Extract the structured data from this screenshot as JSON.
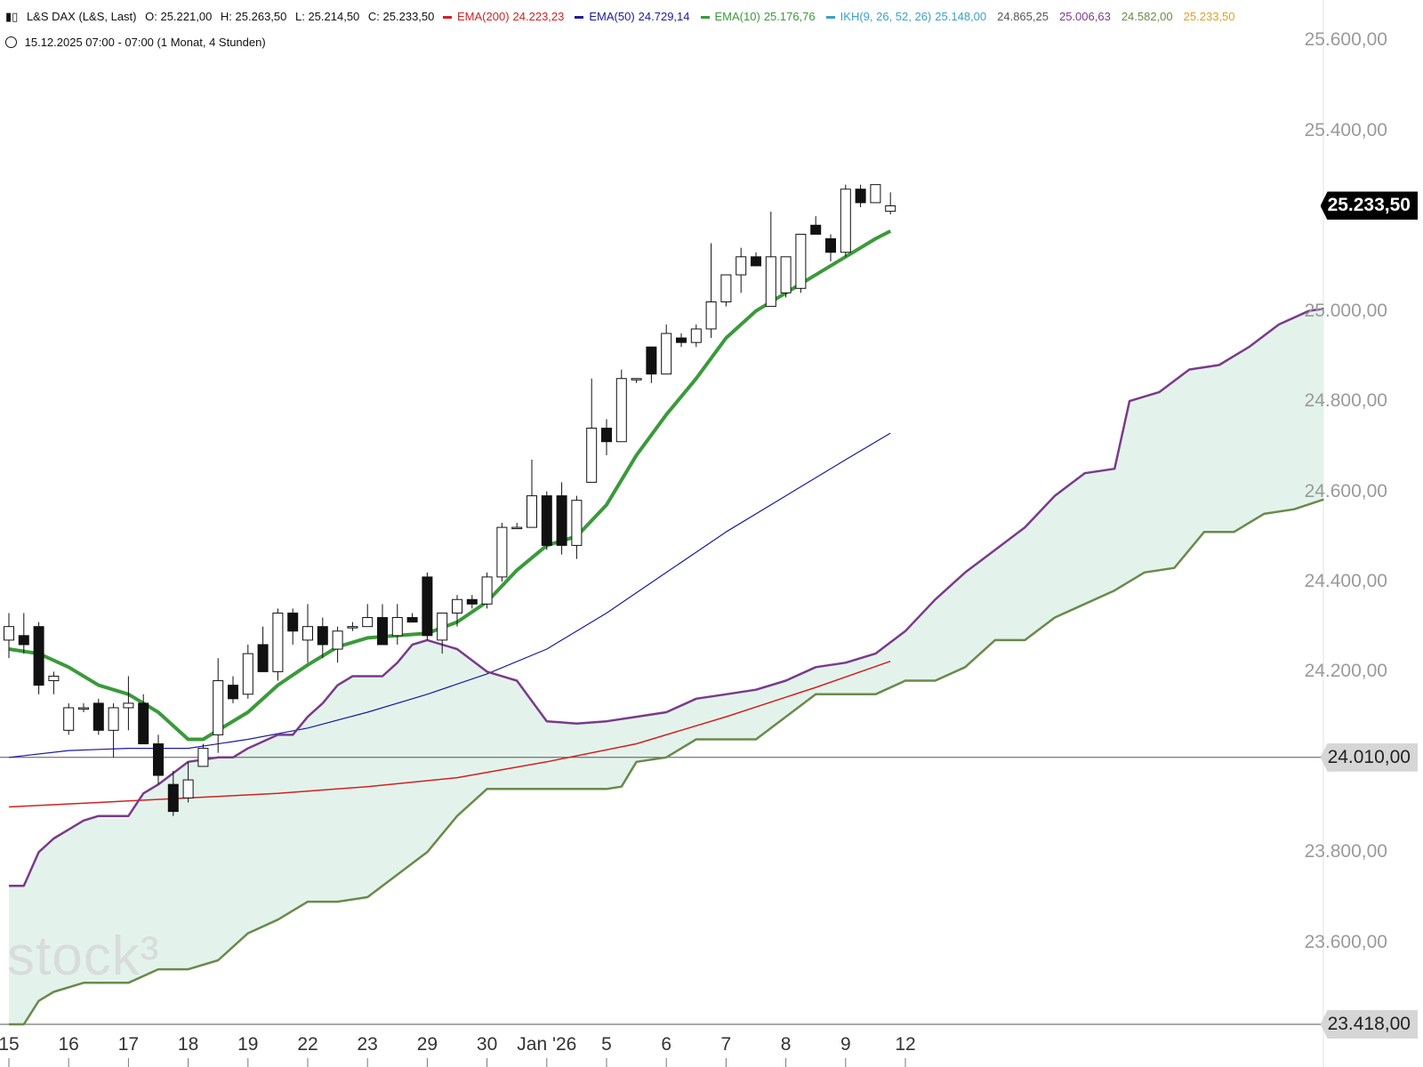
{
  "header": {
    "symbol_icon": "candlestick-icon",
    "symbol": "L&S DAX (L&S, Last)",
    "ohlc": {
      "o": "O: 25.221,00",
      "h": "H: 25.263,50",
      "l": "L: 25.214,50",
      "c": "C: 25.233,50"
    },
    "indicators": [
      {
        "label": "EMA(200)",
        "value": "24.223,23",
        "color": "#d42020"
      },
      {
        "label": "EMA(50)",
        "value": "24.729,14",
        "color": "#1a1aa0"
      },
      {
        "label": "EMA(10)",
        "value": "25.176,76",
        "color": "#3a9a3a"
      },
      {
        "label": "IKH(9, 26, 52, 26)",
        "value": "25.148,00",
        "color": "#3aa0c8",
        "extra": [
          {
            "value": "24.865,25",
            "color": "#555555"
          },
          {
            "value": "25.006,63",
            "color": "#7a3a8a"
          },
          {
            "value": "24.582,00",
            "color": "#6a8a4a"
          },
          {
            "value": "25.233,50",
            "color": "#e0a020"
          }
        ]
      }
    ],
    "time_icon": "clock-icon",
    "timestamp": "15.12.2025 07:00 - 07:00",
    "range": "(1 Monat, 4 Stunden)"
  },
  "watermark": "stock³",
  "price_label": "25.233,50",
  "hline_labels": [
    "24.010,00",
    "23.418,00"
  ],
  "chart_data": {
    "type": "candlestick",
    "y_axis": {
      "ticks": [
        "25.600,00",
        "25.400,00",
        "25.000,00",
        "24.800,00",
        "24.600,00",
        "24.400,00",
        "24.200,00",
        "23.800,00",
        "23.600,00"
      ],
      "ylim": [
        23418,
        25650
      ]
    },
    "x_axis": {
      "ticks": [
        "15",
        "16",
        "17",
        "18",
        "19",
        "22",
        "23",
        "29",
        "30",
        "Jan '26",
        "5",
        "6",
        "7",
        "8",
        "9",
        "12"
      ]
    },
    "horizontal_lines": [
      24010,
      23418
    ],
    "candles": [
      [
        24270,
        24330,
        24230,
        24300
      ],
      [
        24280,
        24330,
        24240,
        24260
      ],
      [
        24300,
        24310,
        24150,
        24170
      ],
      [
        24180,
        24200,
        24150,
        24190
      ],
      [
        24070,
        24130,
        24060,
        24120
      ],
      [
        24120,
        24130,
        24110,
        24120
      ],
      [
        24130,
        24140,
        24060,
        24070
      ],
      [
        24070,
        24130,
        24010,
        24120
      ],
      [
        24120,
        24190,
        24070,
        24130
      ],
      [
        24130,
        24150,
        24060,
        24040
      ],
      [
        24040,
        24060,
        23950,
        23970
      ],
      [
        23950,
        23980,
        23880,
        23890
      ],
      [
        23920,
        24000,
        23910,
        23960
      ],
      [
        23990,
        24040,
        23990,
        24030
      ],
      [
        24060,
        24230,
        24020,
        24180
      ],
      [
        24170,
        24190,
        24130,
        24140
      ],
      [
        24150,
        24260,
        24140,
        24240
      ],
      [
        24260,
        24300,
        24200,
        24200
      ],
      [
        24200,
        24340,
        24180,
        24330
      ],
      [
        24330,
        24340,
        24260,
        24290
      ],
      [
        24270,
        24350,
        24220,
        24300
      ],
      [
        24300,
        24320,
        24230,
        24260
      ],
      [
        24250,
        24300,
        24220,
        24290
      ],
      [
        24300,
        24310,
        24290,
        24300
      ],
      [
        24300,
        24350,
        24300,
        24320
      ],
      [
        24320,
        24350,
        24260,
        24260
      ],
      [
        24280,
        24350,
        24260,
        24320
      ],
      [
        24320,
        24330,
        24310,
        24310
      ],
      [
        24410,
        24420,
        24270,
        24280
      ],
      [
        24270,
        24330,
        24240,
        24330
      ],
      [
        24330,
        24370,
        24300,
        24360
      ],
      [
        24360,
        24370,
        24340,
        24350
      ],
      [
        24350,
        24420,
        24340,
        24410
      ],
      [
        24410,
        24530,
        24400,
        24520
      ],
      [
        24520,
        24530,
        24520,
        24520
      ],
      [
        24520,
        24670,
        24520,
        24590
      ],
      [
        24590,
        24600,
        24470,
        24480
      ],
      [
        24590,
        24620,
        24460,
        24480
      ],
      [
        24480,
        24590,
        24450,
        24580
      ],
      [
        24620,
        24850,
        24620,
        24740
      ],
      [
        24740,
        24760,
        24680,
        24710
      ],
      [
        24710,
        24870,
        24710,
        24850
      ],
      [
        24850,
        24850,
        24840,
        24850
      ],
      [
        24920,
        24920,
        24840,
        24860
      ],
      [
        24860,
        24970,
        24860,
        24950
      ],
      [
        24940,
        24950,
        24920,
        24930
      ],
      [
        24930,
        24970,
        24920,
        24960
      ],
      [
        24960,
        25150,
        24940,
        25020
      ],
      [
        25020,
        25080,
        25010,
        25080
      ],
      [
        25080,
        25140,
        25040,
        25120
      ],
      [
        25120,
        25130,
        25100,
        25100
      ],
      [
        25010,
        25220,
        25010,
        25120
      ],
      [
        25040,
        25120,
        25030,
        25120
      ],
      [
        25050,
        25170,
        25040,
        25170
      ],
      [
        25190,
        25210,
        25170,
        25170
      ],
      [
        25160,
        25170,
        25110,
        25130
      ],
      [
        25130,
        25280,
        25120,
        25270
      ],
      [
        25270,
        25280,
        25230,
        25240
      ],
      [
        25240,
        25280,
        25240,
        25280
      ],
      [
        25221,
        25263,
        25214,
        25233
      ]
    ],
    "series": [
      {
        "name": "EMA(200)",
        "color": "#d42020",
        "points": [
          [
            0,
            23900
          ],
          [
            6,
            23910
          ],
          [
            12,
            23920
          ],
          [
            18,
            23930
          ],
          [
            24,
            23945
          ],
          [
            30,
            23965
          ],
          [
            36,
            24000
          ],
          [
            42,
            24040
          ],
          [
            48,
            24100
          ],
          [
            54,
            24165
          ],
          [
            59,
            24223
          ]
        ]
      },
      {
        "name": "EMA(50)",
        "color": "#1a1aa0",
        "points": [
          [
            0,
            24010
          ],
          [
            4,
            24025
          ],
          [
            8,
            24030
          ],
          [
            12,
            24030
          ],
          [
            16,
            24050
          ],
          [
            20,
            24075
          ],
          [
            24,
            24110
          ],
          [
            28,
            24150
          ],
          [
            32,
            24195
          ],
          [
            36,
            24250
          ],
          [
            40,
            24330
          ],
          [
            44,
            24420
          ],
          [
            48,
            24510
          ],
          [
            52,
            24590
          ],
          [
            56,
            24670
          ],
          [
            59,
            24729
          ]
        ]
      },
      {
        "name": "EMA(10)",
        "color": "#3a9a3a",
        "points": [
          [
            0,
            24250
          ],
          [
            2,
            24240
          ],
          [
            4,
            24210
          ],
          [
            6,
            24170
          ],
          [
            8,
            24150
          ],
          [
            10,
            24110
          ],
          [
            12,
            24050
          ],
          [
            13,
            24050
          ],
          [
            14,
            24070
          ],
          [
            16,
            24110
          ],
          [
            18,
            24170
          ],
          [
            20,
            24215
          ],
          [
            22,
            24255
          ],
          [
            24,
            24275
          ],
          [
            26,
            24280
          ],
          [
            28,
            24285
          ],
          [
            30,
            24310
          ],
          [
            32,
            24355
          ],
          [
            34,
            24425
          ],
          [
            36,
            24480
          ],
          [
            38,
            24500
          ],
          [
            40,
            24570
          ],
          [
            42,
            24680
          ],
          [
            44,
            24770
          ],
          [
            46,
            24850
          ],
          [
            48,
            24940
          ],
          [
            50,
            25000
          ],
          [
            52,
            25040
          ],
          [
            54,
            25080
          ],
          [
            56,
            25120
          ],
          [
            58,
            25160
          ],
          [
            59,
            25177
          ]
        ]
      },
      {
        "name": "Senkou A",
        "color": "#7a3a8a",
        "points": [
          [
            0,
            23725
          ],
          [
            1,
            23725
          ],
          [
            2,
            23800
          ],
          [
            3,
            23830
          ],
          [
            4,
            23850
          ],
          [
            5,
            23870
          ],
          [
            6,
            23880
          ],
          [
            7,
            23880
          ],
          [
            8,
            23880
          ],
          [
            9,
            23930
          ],
          [
            10,
            23950
          ],
          [
            12,
            24000
          ],
          [
            14,
            24010
          ],
          [
            15,
            24010
          ],
          [
            16,
            24030
          ],
          [
            18,
            24060
          ],
          [
            19,
            24060
          ],
          [
            20,
            24100
          ],
          [
            21,
            24130
          ],
          [
            22,
            24170
          ],
          [
            23,
            24190
          ],
          [
            25,
            24190
          ],
          [
            26,
            24220
          ],
          [
            27,
            24260
          ],
          [
            28,
            24270
          ],
          [
            30,
            24250
          ],
          [
            32,
            24200
          ],
          [
            34,
            24180
          ],
          [
            36,
            24090
          ],
          [
            38,
            24085
          ],
          [
            40,
            24090
          ],
          [
            42,
            24100
          ],
          [
            44,
            24110
          ],
          [
            46,
            24140
          ],
          [
            48,
            24150
          ],
          [
            50,
            24160
          ],
          [
            52,
            24180
          ],
          [
            54,
            24210
          ],
          [
            56,
            24220
          ],
          [
            58,
            24240
          ],
          [
            60,
            24290
          ],
          [
            62,
            24360
          ],
          [
            64,
            24420
          ],
          [
            66,
            24470
          ],
          [
            68,
            24520
          ],
          [
            70,
            24590
          ],
          [
            72,
            24640
          ],
          [
            74,
            24650
          ],
          [
            75,
            24800
          ],
          [
            77,
            24820
          ],
          [
            79,
            24870
          ],
          [
            81,
            24880
          ],
          [
            83,
            24920
          ],
          [
            85,
            24970
          ],
          [
            87,
            25000
          ],
          [
            88,
            25005
          ]
        ]
      },
      {
        "name": "Senkou B",
        "color": "#6a8a4a",
        "points": [
          [
            0,
            23418
          ],
          [
            1,
            23418
          ],
          [
            2,
            23470
          ],
          [
            3,
            23490
          ],
          [
            5,
            23510
          ],
          [
            8,
            23510
          ],
          [
            10,
            23540
          ],
          [
            12,
            23540
          ],
          [
            14,
            23560
          ],
          [
            16,
            23620
          ],
          [
            18,
            23650
          ],
          [
            20,
            23690
          ],
          [
            22,
            23690
          ],
          [
            24,
            23700
          ],
          [
            26,
            23750
          ],
          [
            28,
            23800
          ],
          [
            30,
            23880
          ],
          [
            32,
            23940
          ],
          [
            40,
            23940
          ],
          [
            41,
            23945
          ],
          [
            42,
            24000
          ],
          [
            44,
            24010
          ],
          [
            46,
            24050
          ],
          [
            50,
            24050
          ],
          [
            52,
            24100
          ],
          [
            54,
            24150
          ],
          [
            58,
            24150
          ],
          [
            60,
            24180
          ],
          [
            62,
            24180
          ],
          [
            64,
            24210
          ],
          [
            66,
            24270
          ],
          [
            68,
            24270
          ],
          [
            70,
            24320
          ],
          [
            72,
            24350
          ],
          [
            74,
            24380
          ],
          [
            76,
            24420
          ],
          [
            78,
            24430
          ],
          [
            80,
            24510
          ],
          [
            82,
            24510
          ],
          [
            84,
            24550
          ],
          [
            86,
            24560
          ],
          [
            88,
            24582
          ]
        ]
      }
    ]
  }
}
